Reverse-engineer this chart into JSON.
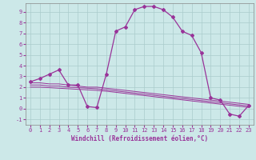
{
  "xlabel": "Windchill (Refroidissement éolien,°C)",
  "background_color": "#cce8e8",
  "grid_color": "#aacccc",
  "line_color": "#993399",
  "xlim": [
    -0.5,
    23.5
  ],
  "ylim": [
    -1.5,
    9.8
  ],
  "series1_x": [
    0,
    1,
    2,
    3,
    4,
    5,
    6,
    7,
    8,
    9,
    10,
    11,
    12,
    13,
    14,
    15,
    16,
    17,
    18,
    19,
    20,
    21,
    22,
    23
  ],
  "series1_y": [
    2.5,
    2.8,
    3.2,
    3.6,
    2.2,
    2.2,
    0.2,
    0.1,
    3.2,
    7.2,
    7.6,
    9.2,
    9.5,
    9.5,
    9.2,
    8.5,
    7.2,
    6.8,
    5.2,
    1.0,
    0.8,
    -0.5,
    -0.7,
    0.3
  ],
  "series2_x": [
    0,
    1,
    2,
    3,
    4,
    5,
    6,
    7,
    8,
    9,
    10,
    11,
    12,
    13,
    14,
    15,
    16,
    17,
    18,
    19,
    20,
    21,
    22,
    23
  ],
  "series2_y": [
    2.4,
    2.4,
    2.3,
    2.3,
    2.2,
    2.1,
    2.0,
    2.0,
    1.9,
    1.8,
    1.7,
    1.6,
    1.5,
    1.4,
    1.3,
    1.2,
    1.1,
    1.0,
    0.9,
    0.8,
    0.7,
    0.6,
    0.5,
    0.4
  ],
  "series3_x": [
    0,
    1,
    2,
    3,
    4,
    5,
    6,
    7,
    8,
    9,
    10,
    11,
    12,
    13,
    14,
    15,
    16,
    17,
    18,
    19,
    20,
    21,
    22,
    23
  ],
  "series3_y": [
    2.2,
    2.2,
    2.1,
    2.1,
    2.0,
    1.95,
    1.9,
    1.85,
    1.75,
    1.65,
    1.55,
    1.45,
    1.35,
    1.25,
    1.15,
    1.05,
    0.95,
    0.85,
    0.75,
    0.65,
    0.55,
    0.45,
    0.35,
    0.25
  ],
  "series4_x": [
    0,
    1,
    2,
    3,
    4,
    5,
    6,
    7,
    8,
    9,
    10,
    11,
    12,
    13,
    14,
    15,
    16,
    17,
    18,
    19,
    20,
    21,
    22,
    23
  ],
  "series4_y": [
    2.0,
    2.0,
    1.95,
    1.9,
    1.85,
    1.8,
    1.75,
    1.7,
    1.62,
    1.52,
    1.42,
    1.32,
    1.22,
    1.12,
    1.02,
    0.92,
    0.82,
    0.72,
    0.62,
    0.52,
    0.42,
    0.32,
    0.22,
    0.12
  ],
  "tick_fontsize": 5.0,
  "label_fontsize": 5.5
}
